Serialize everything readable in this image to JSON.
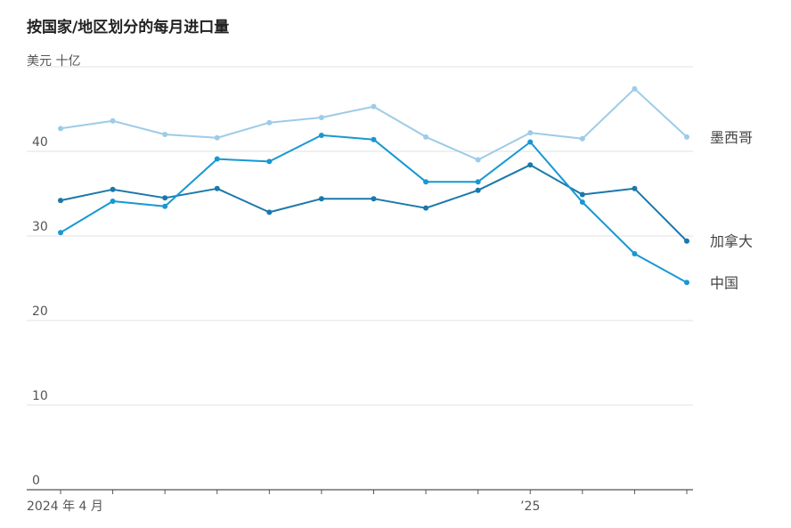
{
  "chart_data": {
    "type": "line",
    "title": "按国家/地区划分的每月进口量",
    "unit_label": "美元 十亿",
    "xlabel": "",
    "ylabel": "",
    "ylim": [
      0,
      50
    ],
    "yticks": [
      0,
      10,
      20,
      30,
      40,
      50
    ],
    "ytick_labels": [
      "0",
      "10",
      "20",
      "30",
      "40",
      ""
    ],
    "x": [
      "2024-04",
      "2024-05",
      "2024-06",
      "2024-07",
      "2024-08",
      "2024-09",
      "2024-10",
      "2024-11",
      "2024-12",
      "2025-01",
      "2025-02",
      "2025-03",
      "2025-04"
    ],
    "x_tick_labels": [
      {
        "index": 0,
        "label": "2024 年 4 月"
      },
      {
        "index": 9,
        "label": "’25"
      }
    ],
    "grid": true,
    "legend": "direct labels at right end of lines",
    "series": [
      {
        "name": "墨西哥",
        "color": "#9dcbe8",
        "values": [
          42.7,
          43.6,
          42.0,
          41.6,
          43.4,
          44.0,
          45.3,
          41.7,
          39.0,
          42.2,
          41.5,
          47.4,
          41.7
        ]
      },
      {
        "name": "加拿大",
        "color": "#1a78aa",
        "values": [
          34.2,
          35.5,
          34.5,
          35.6,
          32.8,
          34.4,
          34.4,
          33.3,
          35.4,
          38.4,
          34.9,
          35.6,
          29.4
        ]
      },
      {
        "name": "中国",
        "color": "#1798d2",
        "values": [
          30.4,
          34.1,
          33.5,
          39.1,
          38.8,
          41.9,
          41.4,
          36.4,
          36.4,
          41.1,
          34.0,
          27.9,
          24.5
        ]
      }
    ]
  }
}
